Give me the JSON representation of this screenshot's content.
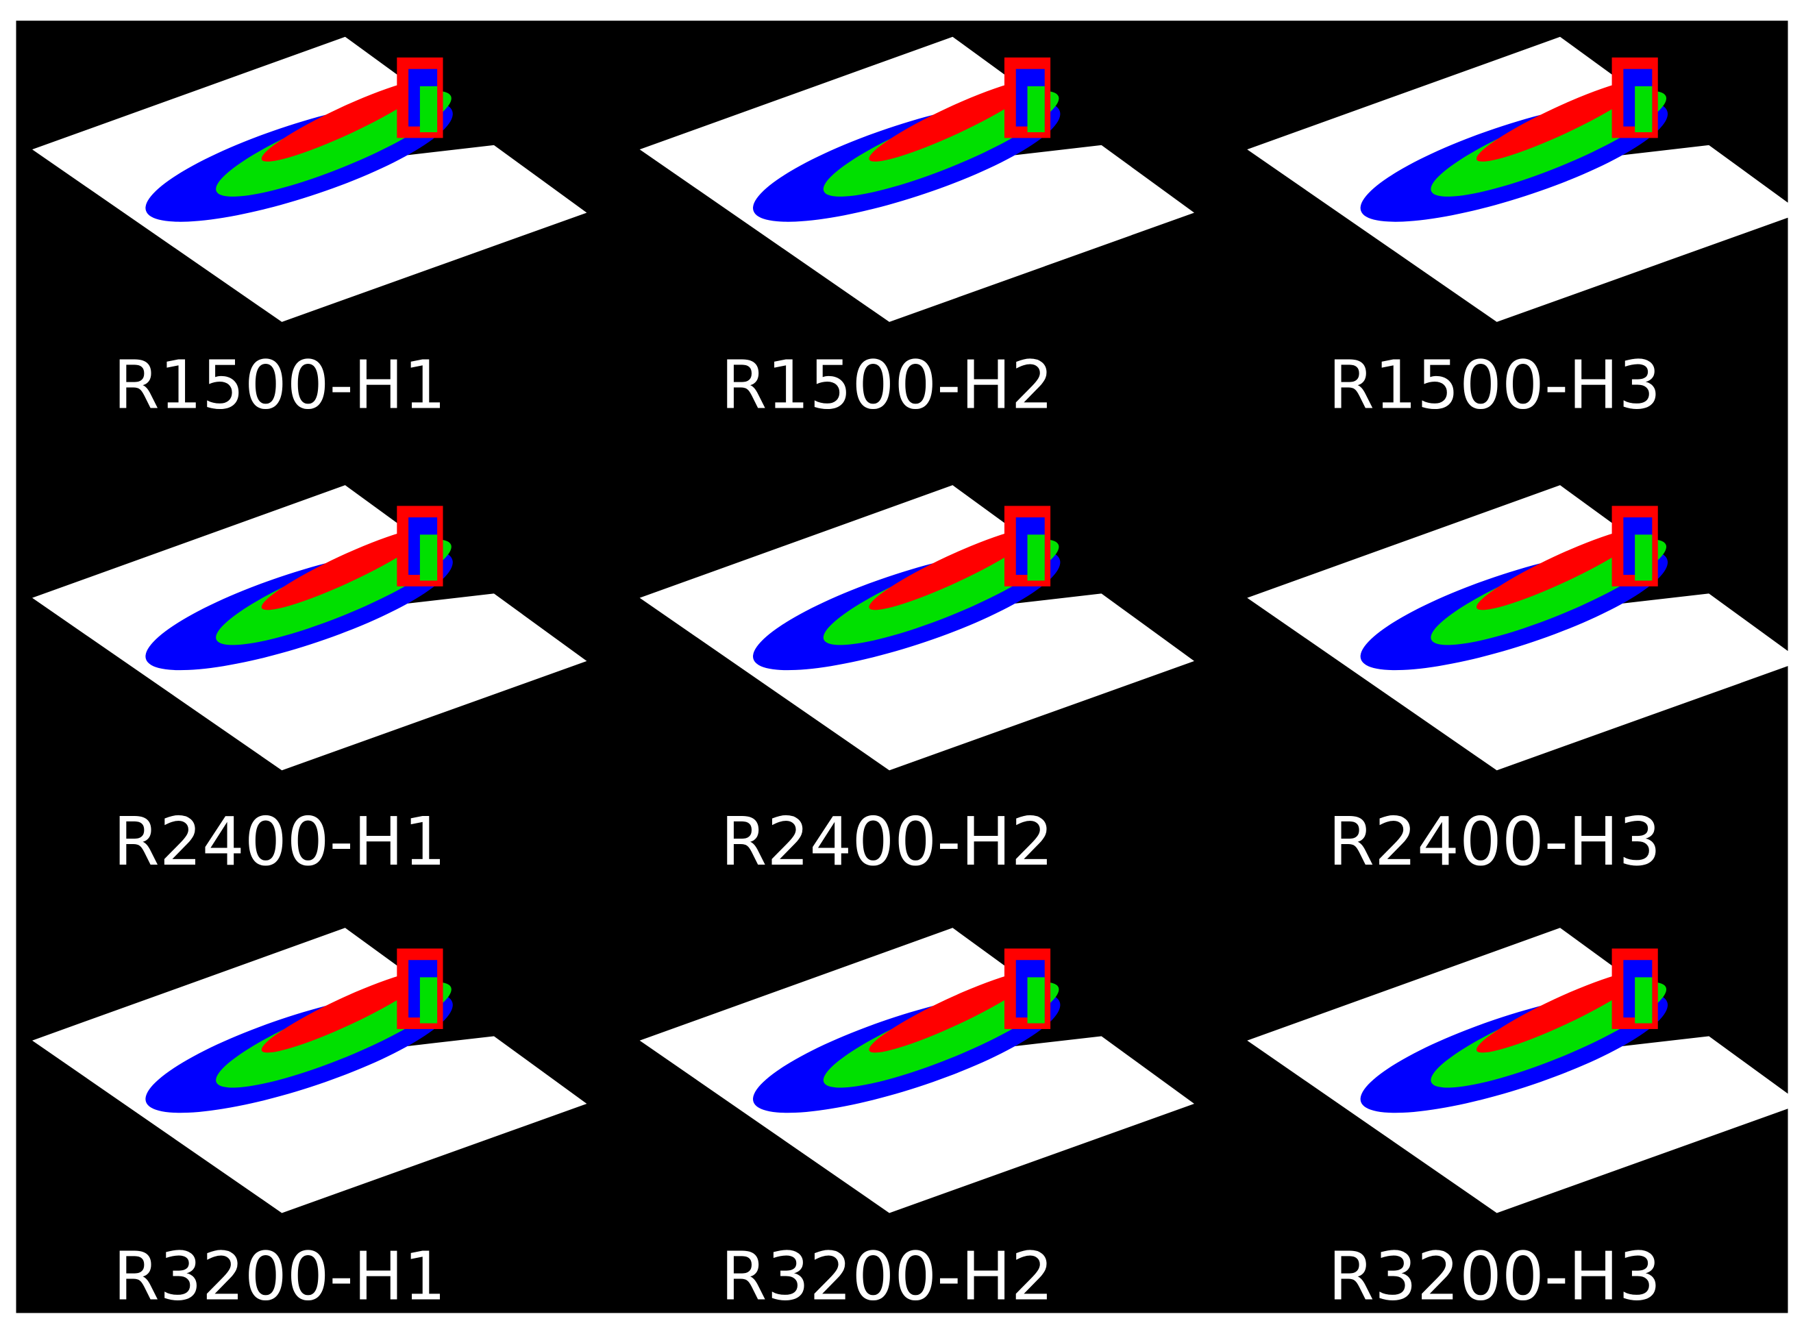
{
  "panels": [
    {
      "label": "R1500-H1"
    },
    {
      "label": "R1500-H2"
    },
    {
      "label": "R1500-H3"
    },
    {
      "label": "R2400-H1"
    },
    {
      "label": "R2400-H2"
    },
    {
      "label": "R2400-H3"
    },
    {
      "label": "R3200-H1"
    },
    {
      "label": "R3200-H2"
    },
    {
      "label": "R3200-H3"
    }
  ]
}
